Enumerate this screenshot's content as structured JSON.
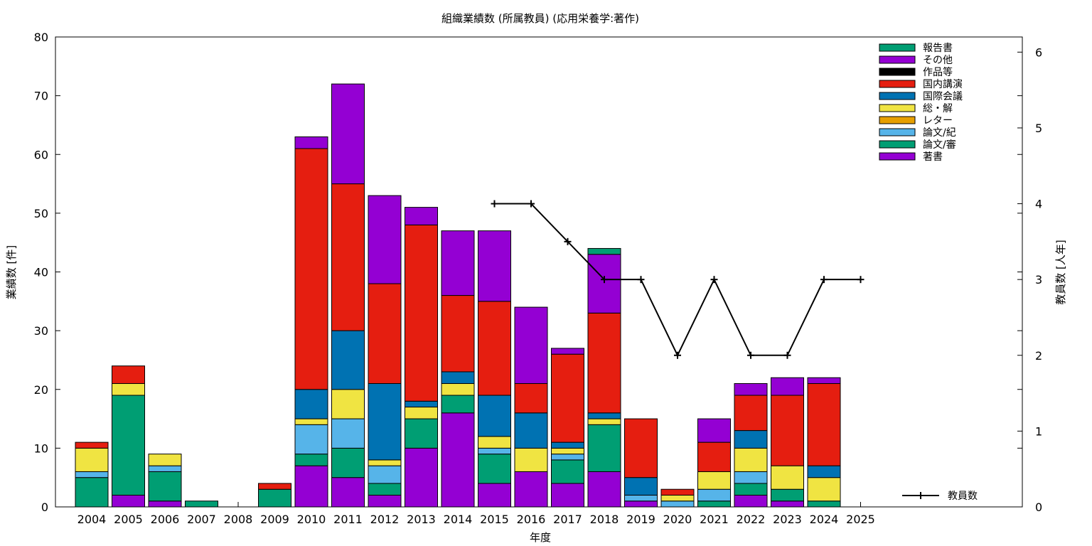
{
  "chart_data": {
    "type": "bar",
    "stacked": true,
    "title": "組織業績数 (所属教員) (応用栄養学:著作)",
    "xlabel": "年度",
    "ylabel": "業績数 [件]",
    "y2label": "教員数 [人年]",
    "ylim": [
      0,
      80
    ],
    "y2lim": [
      0,
      6.2
    ],
    "yticks": [
      "0",
      "10",
      "20",
      "30",
      "40",
      "50",
      "60",
      "70",
      "80"
    ],
    "y2ticks": [
      "0",
      "1",
      "2",
      "3",
      "4",
      "5",
      "6"
    ],
    "categories": [
      "2004",
      "2005",
      "2006",
      "2007",
      "2008",
      "2009",
      "2010",
      "2011",
      "2012",
      "2013",
      "2014",
      "2015",
      "2016",
      "2017",
      "2018",
      "2019",
      "2020",
      "2021",
      "2022",
      "2023",
      "2024",
      "2025"
    ],
    "legend_position": "top-right",
    "series": [
      {
        "name": "著書",
        "color": "#9400d3",
        "values": [
          0,
          2,
          1,
          0,
          0,
          0,
          7,
          5,
          2,
          10,
          16,
          4,
          6,
          4,
          6,
          1,
          0,
          0,
          2,
          1,
          0,
          0
        ]
      },
      {
        "name": "論文/審",
        "color": "#009e73",
        "values": [
          5,
          17,
          5,
          1,
          0,
          3,
          2,
          5,
          2,
          5,
          3,
          5,
          0,
          4,
          8,
          0,
          0,
          1,
          2,
          2,
          1,
          0
        ]
      },
      {
        "name": "論文/紀",
        "color": "#56b4e9",
        "values": [
          1,
          0,
          1,
          0,
          0,
          0,
          5,
          5,
          3,
          0,
          0,
          1,
          0,
          1,
          0,
          1,
          1,
          2,
          2,
          0,
          0,
          0
        ]
      },
      {
        "name": "レター",
        "color": "#e69f00",
        "values": [
          0,
          0,
          0,
          0,
          0,
          0,
          0,
          0,
          0,
          0,
          0,
          0,
          0,
          0,
          0,
          0,
          0,
          0,
          0,
          0,
          0,
          0
        ]
      },
      {
        "name": "総・解",
        "color": "#f0e442",
        "values": [
          4,
          2,
          2,
          0,
          0,
          0,
          1,
          5,
          1,
          2,
          2,
          2,
          4,
          1,
          1,
          0,
          1,
          3,
          4,
          4,
          4,
          0
        ]
      },
      {
        "name": "国際会議",
        "color": "#0072b2",
        "values": [
          0,
          0,
          0,
          0,
          0,
          0,
          5,
          10,
          13,
          1,
          2,
          7,
          6,
          1,
          1,
          3,
          0,
          0,
          3,
          0,
          2,
          0
        ]
      },
      {
        "name": "国内講演",
        "color": "#e51e10",
        "values": [
          1,
          3,
          0,
          0,
          0,
          1,
          41,
          25,
          17,
          30,
          13,
          16,
          5,
          15,
          17,
          10,
          1,
          5,
          6,
          12,
          14,
          0
        ]
      },
      {
        "name": "作品等",
        "color": "#000000",
        "values": [
          0,
          0,
          0,
          0,
          0,
          0,
          0,
          0,
          0,
          0,
          0,
          0,
          0,
          0,
          0,
          0,
          0,
          0,
          0,
          0,
          0,
          0
        ]
      },
      {
        "name": "その他",
        "color": "#9400d3",
        "values": [
          0,
          0,
          0,
          0,
          0,
          0,
          2,
          17,
          15,
          3,
          11,
          12,
          13,
          1,
          10,
          0,
          0,
          4,
          2,
          3,
          1,
          0
        ]
      },
      {
        "name": "報告書",
        "color": "#009e73",
        "values": [
          0,
          0,
          0,
          0,
          0,
          0,
          0,
          0,
          0,
          0,
          0,
          0,
          0,
          0,
          1,
          0,
          0,
          0,
          0,
          0,
          0,
          0
        ]
      }
    ],
    "legend_order": [
      "報告書",
      "その他",
      "作品等",
      "国内講演",
      "国際会議",
      "総・解",
      "レター",
      "論文/紀",
      "論文/審",
      "著書"
    ],
    "line_series": {
      "name": "教員数",
      "axis": "y2",
      "color": "#000000",
      "points": [
        {
          "x": "2015",
          "y": 4
        },
        {
          "x": "2016",
          "y": 4
        },
        {
          "x": "2017",
          "y": 3.5
        },
        {
          "x": "2018",
          "y": 3
        },
        {
          "x": "2019",
          "y": 3
        },
        {
          "x": "2020",
          "y": 2
        },
        {
          "x": "2021",
          "y": 3
        },
        {
          "x": "2022",
          "y": 2
        },
        {
          "x": "2023",
          "y": 2
        },
        {
          "x": "2024",
          "y": 3
        },
        {
          "x": "2025",
          "y": 3
        }
      ]
    }
  }
}
